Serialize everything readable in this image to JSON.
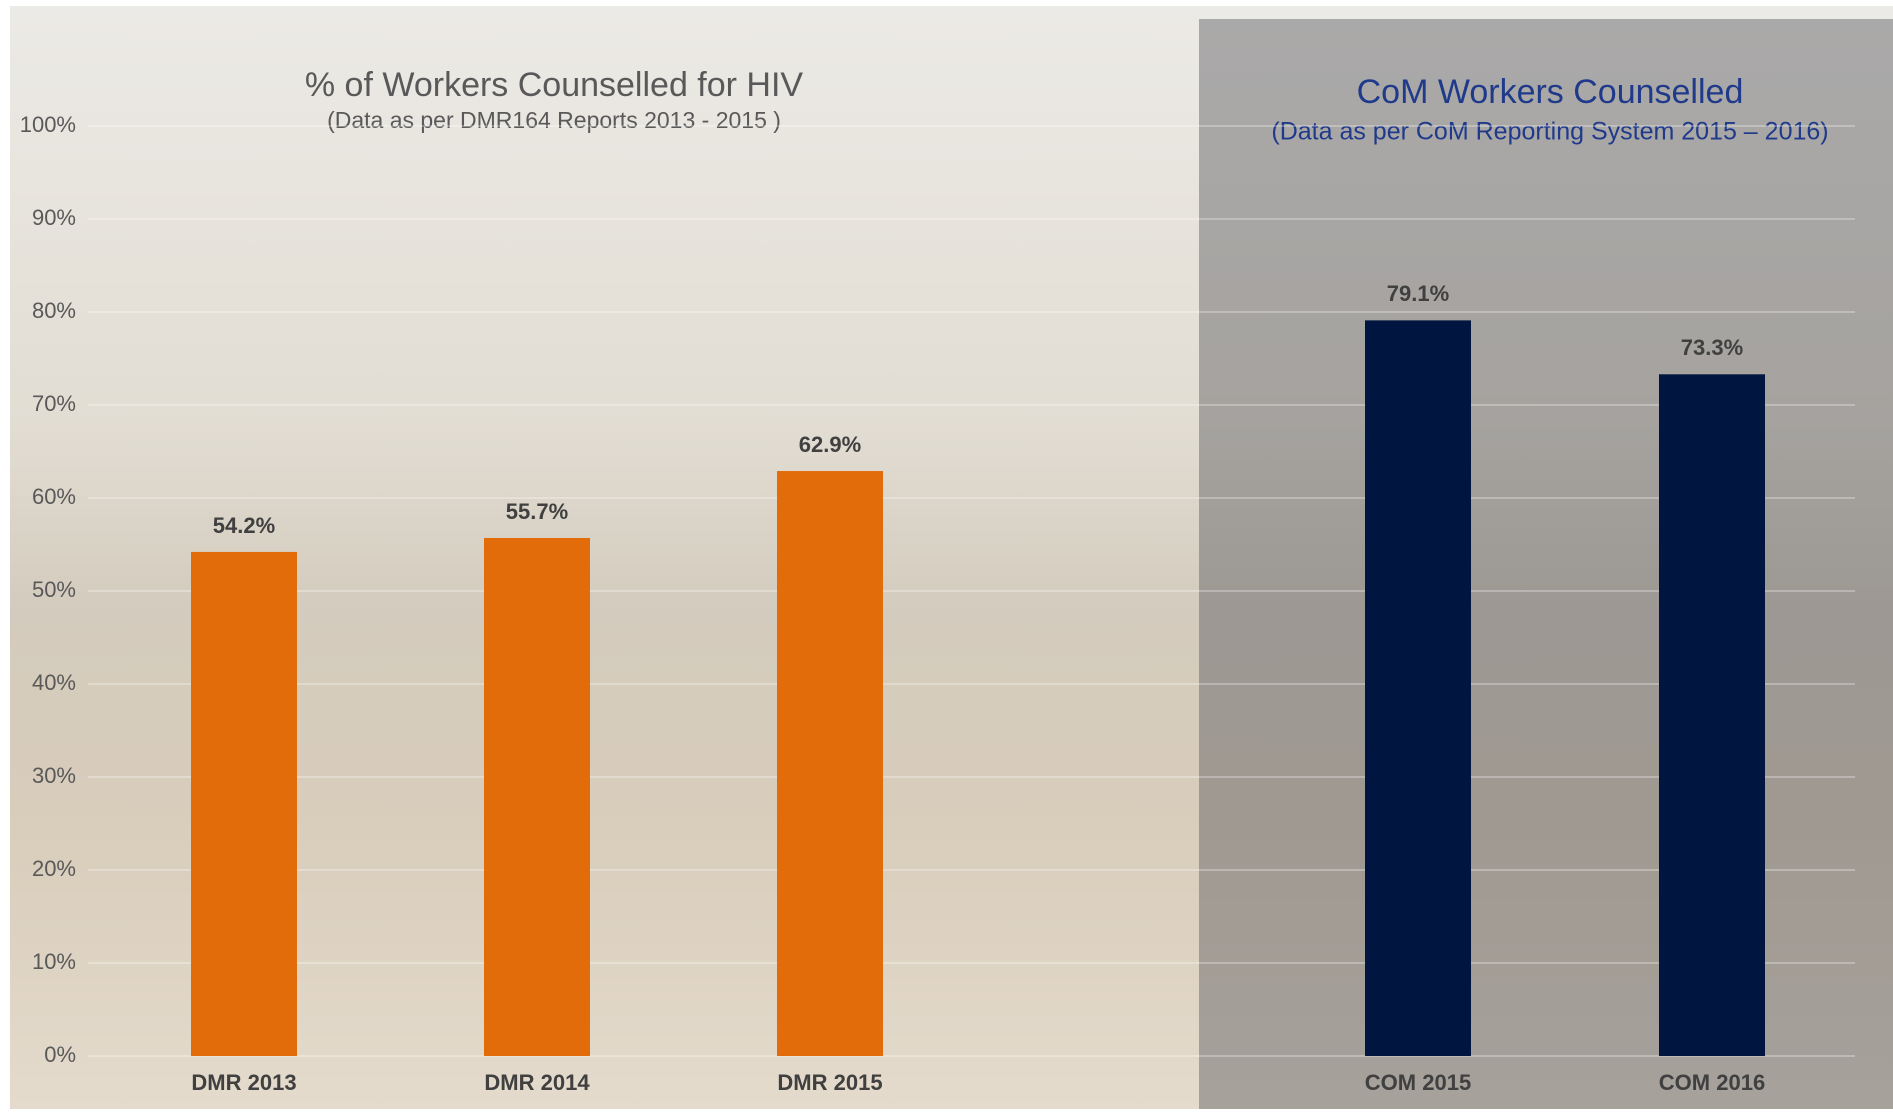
{
  "chart_data": {
    "type": "bar",
    "title": "% of Workers Counselled  for HIV",
    "subtitle": "(Data as per DMR164  Reports 2013 - 2015 )",
    "panel_title": "CoM Workers Counselled",
    "panel_subtitle": "(Data as per CoM Reporting System 2015 – 2016)",
    "categories": [
      "DMR 2013",
      "DMR 2014",
      "DMR 2015",
      "COM 2015",
      "COM 2016"
    ],
    "values": [
      54.2,
      55.7,
      62.9,
      79.1,
      73.3
    ],
    "value_labels": [
      "54.2%",
      "55.7%",
      "62.9%",
      "79.1%",
      "73.3%"
    ],
    "colors": [
      "#e36c0a",
      "#e36c0a",
      "#e36c0a",
      "#001540",
      "#001540"
    ],
    "ylim": [
      0,
      100
    ],
    "yticks": [
      {
        "value": 0,
        "label": "0%"
      },
      {
        "value": 10,
        "label": "10%"
      },
      {
        "value": 20,
        "label": "20%"
      },
      {
        "value": 30,
        "label": "30%"
      },
      {
        "value": 40,
        "label": "40%"
      },
      {
        "value": 50,
        "label": "50%"
      },
      {
        "value": 60,
        "label": "60%"
      },
      {
        "value": 70,
        "label": "70%"
      },
      {
        "value": 80,
        "label": "80%"
      },
      {
        "value": 90,
        "label": "90%"
      },
      {
        "value": 100,
        "label": "100%"
      }
    ],
    "grid": true
  }
}
